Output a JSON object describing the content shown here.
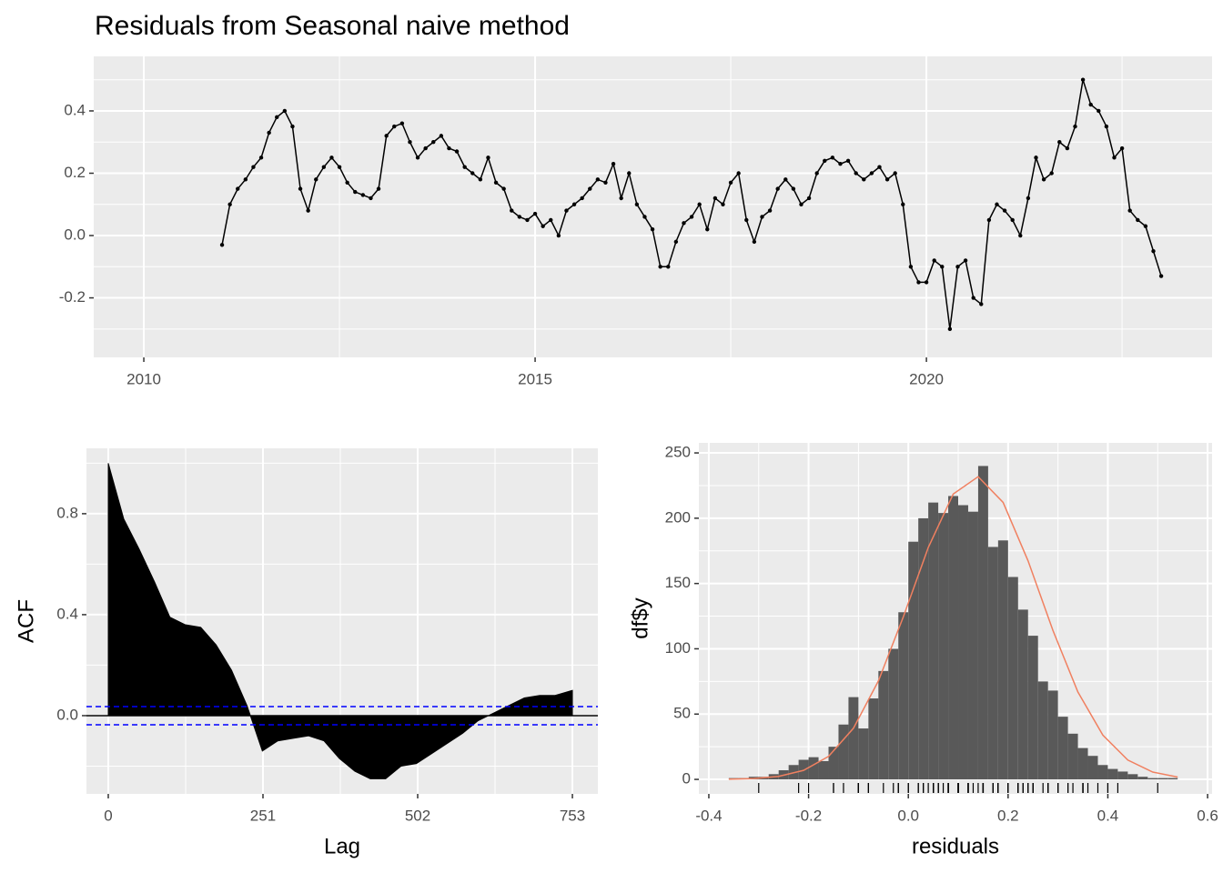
{
  "chart_data": [
    {
      "type": "line",
      "title": "Residuals from Seasonal naive method",
      "color": "#000000",
      "x": [
        2011,
        2011.1,
        2011.2,
        2011.3,
        2011.4,
        2011.5,
        2011.6,
        2011.7,
        2011.8,
        2011.9,
        2012,
        2012.1,
        2012.2,
        2012.3,
        2012.4,
        2012.5,
        2012.6,
        2012.7,
        2012.8,
        2012.9,
        2013,
        2013.1,
        2013.2,
        2013.3,
        2013.4,
        2013.5,
        2013.6,
        2013.7,
        2013.8,
        2013.9,
        2014,
        2014.1,
        2014.2,
        2014.3,
        2014.4,
        2014.5,
        2014.6,
        2014.7,
        2014.8,
        2014.9,
        2015,
        2015.1,
        2015.2,
        2015.3,
        2015.4,
        2015.5,
        2015.6,
        2015.7,
        2015.8,
        2015.9,
        2016,
        2016.1,
        2016.2,
        2016.3,
        2016.4,
        2016.5,
        2016.6,
        2016.7,
        2016.8,
        2016.9,
        2017,
        2017.1,
        2017.2,
        2017.3,
        2017.4,
        2017.5,
        2017.6,
        2017.7,
        2017.8,
        2017.9,
        2018,
        2018.1,
        2018.2,
        2018.3,
        2018.4,
        2018.5,
        2018.6,
        2018.7,
        2018.8,
        2018.9,
        2019,
        2019.1,
        2019.2,
        2019.3,
        2019.4,
        2019.5,
        2019.6,
        2019.7,
        2019.8,
        2019.9,
        2020,
        2020.1,
        2020.2,
        2020.3,
        2020.4,
        2020.5,
        2020.6,
        2020.7,
        2020.8,
        2020.9,
        2021,
        2021.1,
        2021.2,
        2021.3,
        2021.4,
        2021.5,
        2021.6,
        2021.7,
        2021.8,
        2021.9,
        2022,
        2022.1,
        2022.2,
        2022.3,
        2022.4,
        2022.5,
        2022.6,
        2022.7,
        2022.8,
        2022.9,
        2023
      ],
      "values": [
        -0.03,
        0.1,
        0.15,
        0.18,
        0.22,
        0.25,
        0.33,
        0.38,
        0.4,
        0.35,
        0.15,
        0.08,
        0.18,
        0.22,
        0.25,
        0.22,
        0.17,
        0.14,
        0.13,
        0.12,
        0.15,
        0.32,
        0.35,
        0.36,
        0.3,
        0.25,
        0.28,
        0.3,
        0.32,
        0.28,
        0.27,
        0.22,
        0.2,
        0.18,
        0.25,
        0.17,
        0.15,
        0.08,
        0.06,
        0.05,
        0.07,
        0.03,
        0.05,
        0.0,
        0.08,
        0.1,
        0.12,
        0.15,
        0.18,
        0.17,
        0.23,
        0.12,
        0.2,
        0.1,
        0.06,
        0.02,
        -0.1,
        -0.1,
        -0.02,
        0.04,
        0.06,
        0.1,
        0.02,
        0.12,
        0.1,
        0.17,
        0.2,
        0.05,
        -0.02,
        0.06,
        0.08,
        0.15,
        0.18,
        0.15,
        0.1,
        0.12,
        0.2,
        0.24,
        0.25,
        0.23,
        0.24,
        0.2,
        0.18,
        0.2,
        0.22,
        0.18,
        0.2,
        0.1,
        -0.1,
        -0.15,
        -0.15,
        -0.08,
        -0.1,
        -0.3,
        -0.1,
        -0.08,
        -0.2,
        -0.22,
        0.05,
        0.1,
        0.08,
        0.05,
        0.0,
        0.12,
        0.25,
        0.18,
        0.2,
        0.3,
        0.28,
        0.35,
        0.5,
        0.42,
        0.4,
        0.35,
        0.25,
        0.28,
        0.08,
        0.05,
        0.03,
        -0.05,
        -0.13
      ],
      "xlim": [
        2009.36,
        2023.65
      ],
      "xticks": [
        2010,
        2015,
        2020
      ],
      "ylim": [
        -0.391,
        0.575
      ],
      "yticks": [
        -0.2,
        {
          "value": 0,
          "label": "0.0"
        },
        0.2,
        0.4
      ],
      "grid": true
    },
    {
      "type": "area",
      "xlabel": "Lag",
      "ylabel": "ACF",
      "color": "#000000",
      "x": [
        0,
        25,
        50,
        75,
        100,
        125,
        150,
        175,
        200,
        225,
        250,
        275,
        300,
        325,
        350,
        375,
        400,
        425,
        450,
        475,
        500,
        525,
        550,
        575,
        600,
        625,
        650,
        675,
        700,
        725,
        753
      ],
      "values": [
        1.0,
        0.78,
        0.66,
        0.53,
        0.39,
        0.36,
        0.35,
        0.28,
        0.18,
        0.04,
        -0.14,
        -0.1,
        -0.09,
        -0.08,
        -0.1,
        -0.17,
        -0.22,
        -0.25,
        -0.25,
        -0.2,
        -0.19,
        -0.15,
        -0.11,
        -0.07,
        -0.02,
        0.01,
        0.04,
        0.07,
        0.08,
        0.08,
        0.1
      ],
      "ci": [
        0.036,
        -0.036
      ],
      "ci_color": "#0000ff",
      "xlim": [
        -35.4,
        794.3
      ],
      "xticks": [
        0,
        251,
        502,
        753
      ],
      "ylim": [
        -0.31,
        1.059
      ],
      "yticks": [
        {
          "value": 0,
          "label": "0.0"
        },
        0.4,
        0.8
      ],
      "grid": true
    },
    {
      "type": "histogram",
      "xlabel": "residuals",
      "ylabel": "df$y",
      "color": "#595959",
      "bins": [
        -0.36,
        -0.34,
        -0.32,
        -0.3,
        -0.28,
        -0.26,
        -0.24,
        -0.22,
        -0.2,
        -0.18,
        -0.16,
        -0.14,
        -0.12,
        -0.1,
        -0.08,
        -0.06,
        -0.04,
        -0.02,
        0,
        0.02,
        0.04,
        0.06,
        0.08,
        0.1,
        0.12,
        0.14,
        0.16,
        0.18,
        0.2,
        0.22,
        0.24,
        0.26,
        0.28,
        0.3,
        0.32,
        0.34,
        0.36,
        0.38,
        0.4,
        0.42,
        0.44,
        0.46,
        0.48,
        0.5,
        0.52,
        0.54
      ],
      "values": [
        1,
        1,
        2,
        2,
        4,
        7,
        11,
        15,
        17,
        14,
        25,
        42,
        63,
        39,
        62,
        83,
        100,
        128,
        182,
        200,
        212,
        204,
        217,
        210,
        205,
        240,
        178,
        183,
        155,
        130,
        110,
        75,
        68,
        48,
        35,
        24,
        18,
        11,
        8,
        6,
        4,
        2,
        1,
        1,
        1
      ],
      "density": {
        "color": "#f08060",
        "x": [
          -0.36,
          -0.31,
          -0.26,
          -0.21,
          -0.16,
          -0.11,
          -0.06,
          -0.01,
          0.04,
          0.09,
          0.14,
          0.19,
          0.24,
          0.29,
          0.34,
          0.39,
          0.44,
          0.49,
          0.54
        ],
        "y": [
          0.16,
          0.66,
          2.3,
          6.9,
          17.6,
          39.2,
          75.4,
          124.5,
          177.6,
          218.5,
          231.8,
          212.1,
          167.4,
          114,
          66.9,
          33.9,
          14.8,
          5.6,
          1.8
        ]
      },
      "rug": true,
      "xlim": [
        -0.42,
        0.609
      ],
      "xticks": [
        -0.4,
        -0.2,
        {
          "value": 0,
          "label": "0.0"
        },
        0.2,
        0.4,
        0.6
      ],
      "ylim": [
        -11.1,
        257.7
      ],
      "yticks": [
        0,
        50,
        100,
        150,
        200,
        250
      ],
      "grid": true
    }
  ]
}
